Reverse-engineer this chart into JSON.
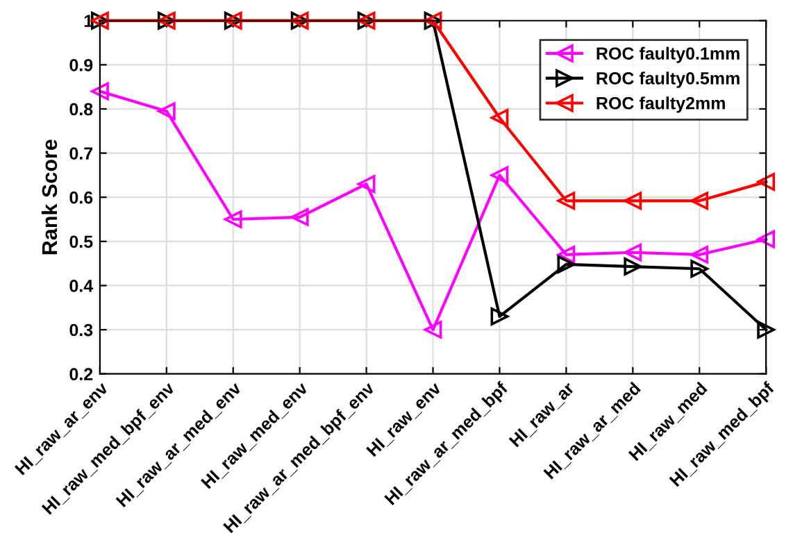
{
  "chart_data": {
    "type": "line",
    "ylabel": "Rank Score",
    "categories": [
      "HI_raw_ar_env",
      "HI_raw_med_bpf_env",
      "HI_raw_ar_med_env",
      "HI_raw_med_env",
      "HI_raw_ar_med_bpf_env",
      "HI_raw_env",
      "HI_raw_ar_med_bpf",
      "HI_raw_ar",
      "HI_raw_ar_med",
      "HI_raw_med",
      "HI_raw_med_bpf"
    ],
    "series": [
      {
        "name": "ROC faulty0.1mm",
        "color": "#ff00ff",
        "marker": "triangle_left",
        "values": [
          0.84,
          0.795,
          0.55,
          0.555,
          0.63,
          0.3,
          0.65,
          0.47,
          0.475,
          0.47,
          0.505
        ]
      },
      {
        "name": "ROC faulty0.5mm",
        "color": "#000000",
        "marker": "triangle_right",
        "values": [
          1,
          1,
          1,
          1,
          1,
          1,
          0.33,
          0.448,
          0.443,
          0.438,
          0.3
        ]
      },
      {
        "name": "ROC faulty2mm",
        "color": "#ff0000",
        "marker": "triangle_left",
        "values": [
          1,
          1,
          1,
          1,
          1,
          1,
          0.78,
          0.592,
          0.592,
          0.592,
          0.635
        ]
      }
    ],
    "ylim": [
      0.2,
      1
    ],
    "yticks": [
      0.2,
      0.3,
      0.4,
      0.5,
      0.6,
      0.7,
      0.8,
      0.9,
      1
    ],
    "grid": true,
    "legend": "top right",
    "line_style": "solid"
  }
}
